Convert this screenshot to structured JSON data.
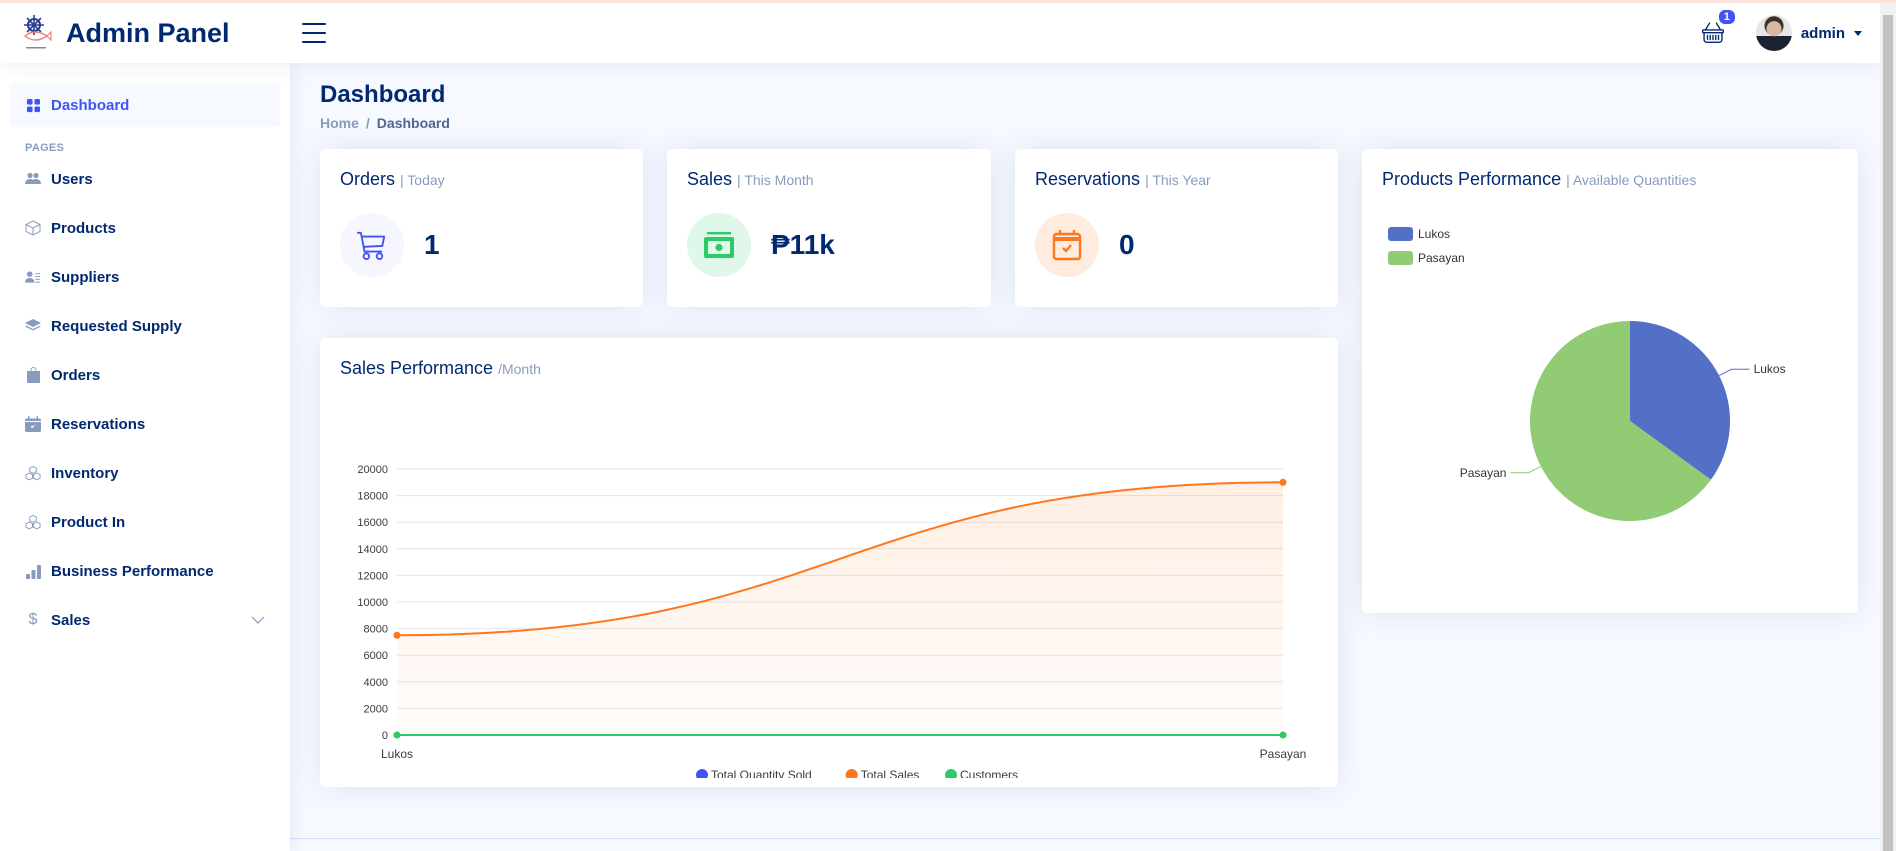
{
  "header": {
    "app_title": "Admin Panel",
    "menu_icon": "hamburger-icon",
    "cart_icon": "basket-icon",
    "cart_badge": "1",
    "user_name": "admin"
  },
  "sidebar": {
    "items": [
      {
        "label": "Dashboard",
        "icon": "grid-icon",
        "active": true
      },
      {
        "label": "Users",
        "icon": "people-icon"
      },
      {
        "label": "Products",
        "icon": "box-icon"
      },
      {
        "label": "Suppliers",
        "icon": "person-lines-icon"
      },
      {
        "label": "Requested Supply",
        "icon": "layers-icon"
      },
      {
        "label": "Orders",
        "icon": "bag-icon"
      },
      {
        "label": "Reservations",
        "icon": "calendar-check-icon"
      },
      {
        "label": "Inventory",
        "icon": "boxes-icon"
      },
      {
        "label": "Product In",
        "icon": "boxes-icon"
      },
      {
        "label": "Business Performance",
        "icon": "bar-chart-icon"
      },
      {
        "label": "Sales",
        "icon": "dollar-icon",
        "has_submenu": true
      }
    ],
    "section_heading": "Pages"
  },
  "page": {
    "title": "Dashboard",
    "breadcrumb": [
      "Home",
      "Dashboard"
    ]
  },
  "cards": {
    "orders": {
      "title": "Orders",
      "period": "| Today",
      "value": "1",
      "icon": "cart-icon",
      "accent": "#4154f1",
      "bg": "#f6f6fe"
    },
    "sales": {
      "title": "Sales",
      "period": "| This Month",
      "value": "₱11k",
      "icon": "cash-icon",
      "accent": "#2eca6a",
      "bg": "#e0f8e9"
    },
    "reservations": {
      "title": "Reservations",
      "period": "| This Year",
      "value": "0",
      "icon": "calendar-check-icon",
      "accent": "#ff771d",
      "bg": "#ffecdf"
    }
  },
  "sales_performance": {
    "title": "Sales Performance",
    "period": "/Month"
  },
  "products_performance": {
    "title": "Products Performance",
    "period": "| Available Quantities"
  },
  "chart_data": [
    {
      "type": "area",
      "title": "Sales Performance /Month",
      "categories": [
        "Lukos",
        "Pasayan"
      ],
      "series": [
        {
          "name": "Total Quantity Sold",
          "color": "#4154f1",
          "values": [
            0,
            0
          ]
        },
        {
          "name": "Total Sales",
          "color": "#ff771d",
          "values": [
            7500,
            19000
          ]
        },
        {
          "name": "Customers",
          "color": "#2eca6a",
          "values": [
            0,
            0
          ]
        }
      ],
      "yticks": [
        0,
        2000,
        4000,
        6000,
        8000,
        10000,
        12000,
        14000,
        16000,
        18000,
        20000
      ],
      "ylim": [
        0,
        20000
      ],
      "xlabel": "",
      "ylabel": "",
      "grid": true,
      "legend_position": "bottom"
    },
    {
      "type": "pie",
      "title": "Products Performance | Available Quantities",
      "categories": [
        "Lukos",
        "Pasayan"
      ],
      "values": [
        35,
        65
      ],
      "colors": [
        "#5470c6",
        "#91cc75"
      ],
      "legend_position": "top-left"
    }
  ]
}
